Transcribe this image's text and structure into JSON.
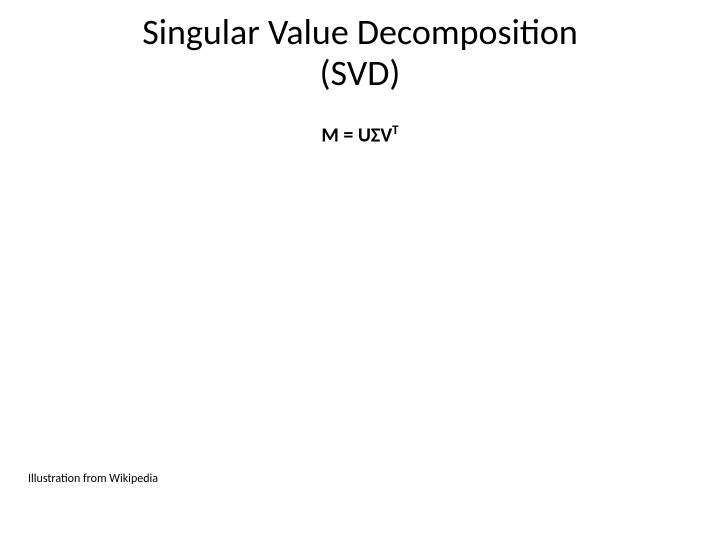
{
  "slide": {
    "title_line1": "Singular Value Decomposition",
    "title_line2": "(SVD)",
    "formula_base": "M = UΣV",
    "formula_sup": "T",
    "caption": "Illustration from Wikipedia",
    "background_color": "#ffffff",
    "text_color": "#000000",
    "title_fontsize": 36,
    "formula_fontsize": 20,
    "caption_fontsize": 12
  }
}
